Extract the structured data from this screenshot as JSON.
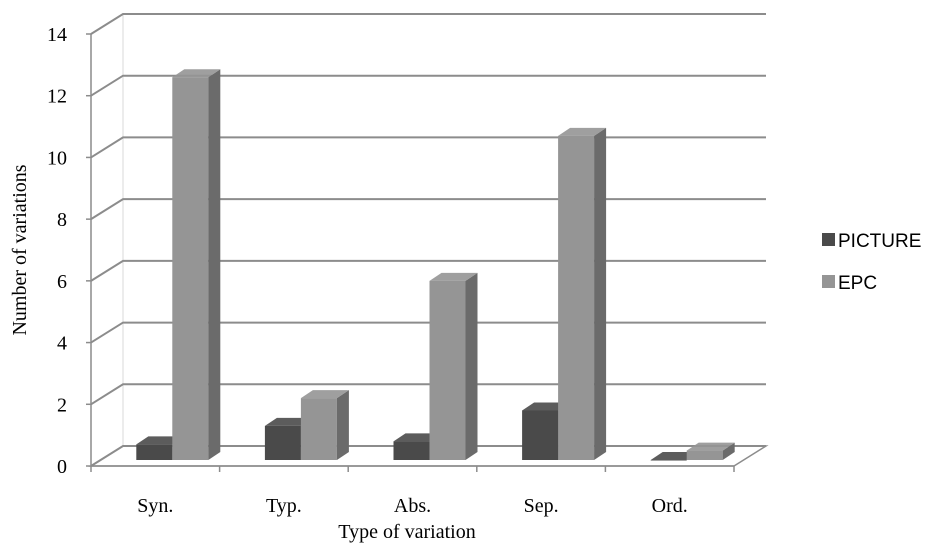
{
  "chart_data": {
    "type": "bar",
    "title": "",
    "xlabel": "Type of variation",
    "ylabel": "Number of variations",
    "categories": [
      "Syn.",
      "Typ.",
      "Abs.",
      "Sep.",
      "Ord."
    ],
    "series": [
      {
        "name": "PICTURE",
        "values": [
          0.7,
          1.3,
          0.8,
          1.8,
          0
        ],
        "color": "#4a4a4a"
      },
      {
        "name": "EPC",
        "values": [
          12.6,
          2.2,
          6.0,
          10.7,
          0.5
        ],
        "color": "#959595"
      }
    ],
    "ylim": [
      0,
      14
    ],
    "yticks": [
      "0",
      "2",
      "4",
      "6",
      "8",
      "10",
      "12",
      "14"
    ],
    "grid": true,
    "three_d": true,
    "legend_position": "right"
  }
}
